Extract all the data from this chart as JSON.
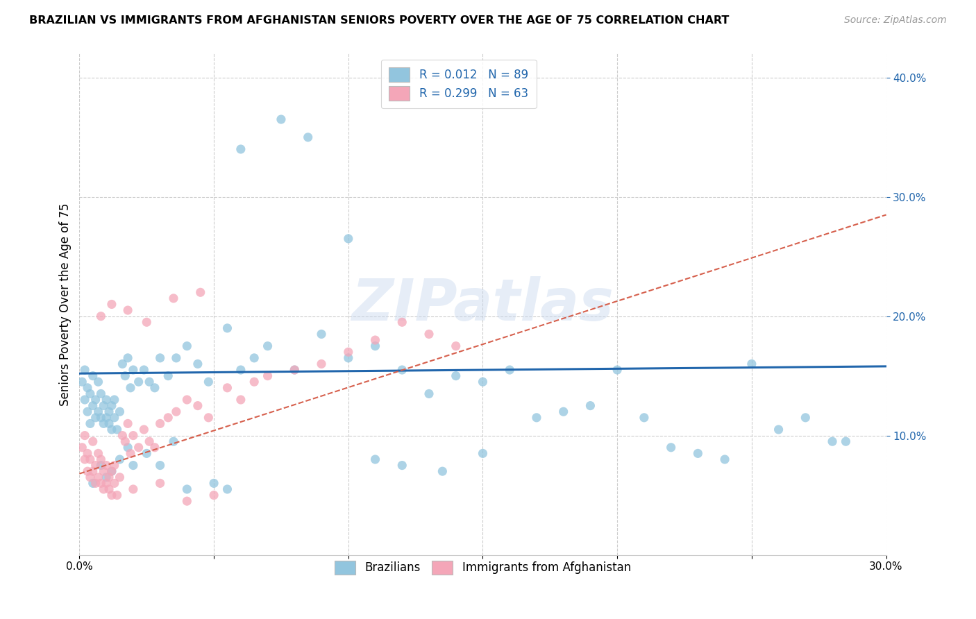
{
  "title": "BRAZILIAN VS IMMIGRANTS FROM AFGHANISTAN SENIORS POVERTY OVER THE AGE OF 75 CORRELATION CHART",
  "source": "Source: ZipAtlas.com",
  "ylabel": "Seniors Poverty Over the Age of 75",
  "xlim": [
    0.0,
    0.3
  ],
  "ylim": [
    0.0,
    0.42
  ],
  "ytick_vals": [
    0.1,
    0.2,
    0.3,
    0.4
  ],
  "ytick_labels": [
    "10.0%",
    "20.0%",
    "30.0%",
    "40.0%"
  ],
  "xtick_vals": [
    0.0,
    0.05,
    0.1,
    0.15,
    0.2,
    0.25,
    0.3
  ],
  "xtick_labels": [
    "0.0%",
    "",
    "",
    "",
    "",
    "",
    "30.0%"
  ],
  "color_blue": "#92c5de",
  "color_pink": "#f4a6b8",
  "color_blue_line": "#2166ac",
  "color_pink_line": "#d6604d",
  "watermark": "ZIPatlas",
  "legend_line1": "R = 0.012   N = 89",
  "legend_line2": "R = 0.299   N = 63",
  "legend_label_color": "#2166ac",
  "blue_x": [
    0.001,
    0.002,
    0.002,
    0.003,
    0.003,
    0.004,
    0.004,
    0.005,
    0.005,
    0.006,
    0.006,
    0.007,
    0.007,
    0.008,
    0.008,
    0.009,
    0.009,
    0.01,
    0.01,
    0.011,
    0.011,
    0.012,
    0.012,
    0.013,
    0.013,
    0.014,
    0.015,
    0.016,
    0.017,
    0.018,
    0.019,
    0.02,
    0.022,
    0.024,
    0.026,
    0.028,
    0.03,
    0.033,
    0.036,
    0.04,
    0.044,
    0.048,
    0.055,
    0.06,
    0.065,
    0.07,
    0.08,
    0.09,
    0.1,
    0.11,
    0.12,
    0.13,
    0.14,
    0.15,
    0.16,
    0.17,
    0.18,
    0.19,
    0.2,
    0.21,
    0.22,
    0.23,
    0.24,
    0.25,
    0.26,
    0.27,
    0.28,
    0.285,
    0.06,
    0.075,
    0.085,
    0.1,
    0.11,
    0.12,
    0.135,
    0.15,
    0.005,
    0.008,
    0.01,
    0.012,
    0.015,
    0.018,
    0.02,
    0.025,
    0.03,
    0.035,
    0.04,
    0.05,
    0.055
  ],
  "blue_y": [
    0.145,
    0.13,
    0.155,
    0.12,
    0.14,
    0.11,
    0.135,
    0.125,
    0.15,
    0.115,
    0.13,
    0.12,
    0.145,
    0.115,
    0.135,
    0.11,
    0.125,
    0.115,
    0.13,
    0.11,
    0.12,
    0.105,
    0.125,
    0.115,
    0.13,
    0.105,
    0.12,
    0.16,
    0.15,
    0.165,
    0.14,
    0.155,
    0.145,
    0.155,
    0.145,
    0.14,
    0.165,
    0.15,
    0.165,
    0.175,
    0.16,
    0.145,
    0.19,
    0.155,
    0.165,
    0.175,
    0.155,
    0.185,
    0.165,
    0.175,
    0.155,
    0.135,
    0.15,
    0.145,
    0.155,
    0.115,
    0.12,
    0.125,
    0.155,
    0.115,
    0.09,
    0.085,
    0.08,
    0.16,
    0.105,
    0.115,
    0.095,
    0.095,
    0.34,
    0.365,
    0.35,
    0.265,
    0.08,
    0.075,
    0.07,
    0.085,
    0.06,
    0.075,
    0.065,
    0.07,
    0.08,
    0.09,
    0.075,
    0.085,
    0.075,
    0.095,
    0.055,
    0.06,
    0.055
  ],
  "pink_x": [
    0.001,
    0.002,
    0.002,
    0.003,
    0.003,
    0.004,
    0.004,
    0.005,
    0.005,
    0.006,
    0.006,
    0.007,
    0.007,
    0.008,
    0.008,
    0.009,
    0.009,
    0.01,
    0.01,
    0.011,
    0.011,
    0.012,
    0.012,
    0.013,
    0.013,
    0.014,
    0.015,
    0.016,
    0.017,
    0.018,
    0.019,
    0.02,
    0.022,
    0.024,
    0.026,
    0.028,
    0.03,
    0.033,
    0.036,
    0.04,
    0.044,
    0.048,
    0.055,
    0.06,
    0.065,
    0.07,
    0.08,
    0.09,
    0.1,
    0.11,
    0.12,
    0.13,
    0.14,
    0.008,
    0.012,
    0.018,
    0.025,
    0.035,
    0.045,
    0.02,
    0.03,
    0.04,
    0.05
  ],
  "pink_y": [
    0.09,
    0.08,
    0.1,
    0.07,
    0.085,
    0.065,
    0.08,
    0.07,
    0.095,
    0.06,
    0.075,
    0.065,
    0.085,
    0.06,
    0.08,
    0.055,
    0.07,
    0.06,
    0.075,
    0.055,
    0.065,
    0.05,
    0.07,
    0.06,
    0.075,
    0.05,
    0.065,
    0.1,
    0.095,
    0.11,
    0.085,
    0.1,
    0.09,
    0.105,
    0.095,
    0.09,
    0.11,
    0.115,
    0.12,
    0.13,
    0.125,
    0.115,
    0.14,
    0.13,
    0.145,
    0.15,
    0.155,
    0.16,
    0.17,
    0.18,
    0.195,
    0.185,
    0.175,
    0.2,
    0.21,
    0.205,
    0.195,
    0.215,
    0.22,
    0.055,
    0.06,
    0.045,
    0.05
  ]
}
